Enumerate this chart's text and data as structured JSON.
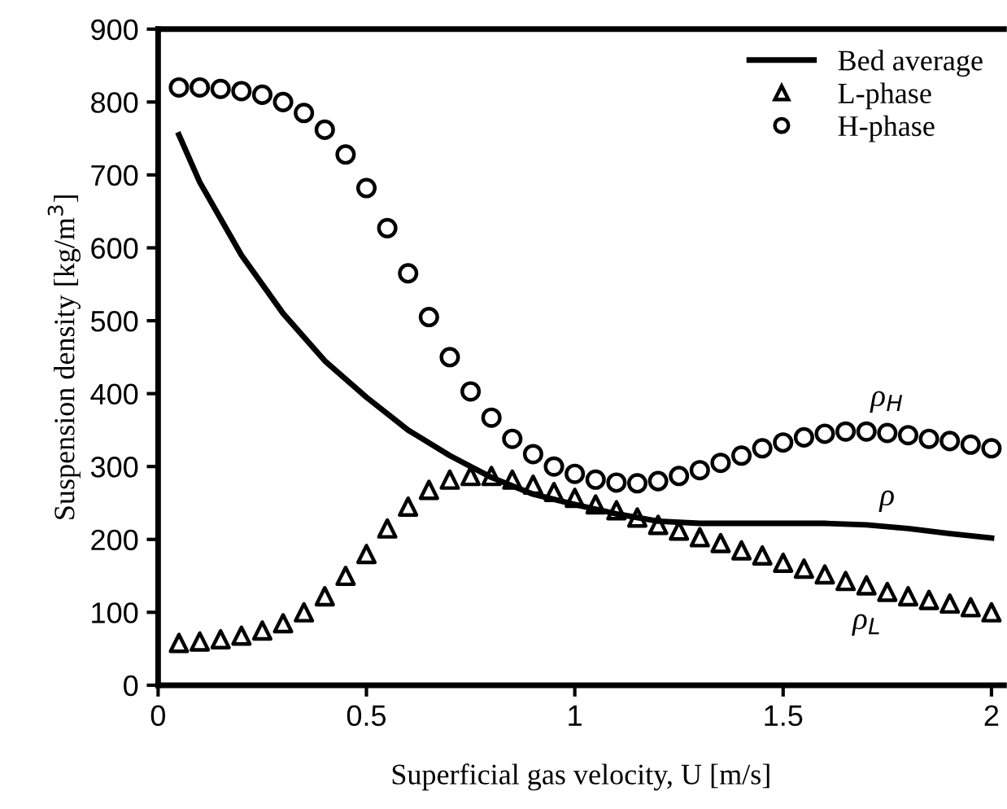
{
  "chart_data": {
    "type": "scatter",
    "xlabel": "Superficial gas velocity, U [m/s]",
    "ylabel": "Suspension density [kg/m$^{3}$]",
    "xlim": [
      0,
      2.03
    ],
    "xticks": [
      0,
      0.5,
      1,
      1.5,
      2
    ],
    "ylim": [
      0,
      900
    ],
    "yticks": [
      0,
      100,
      200,
      300,
      400,
      500,
      600,
      700,
      800,
      900
    ],
    "grid": false,
    "legend": "top right",
    "series": [
      {
        "name": "Bed average",
        "type": "line",
        "color": "#000000",
        "marker": "none",
        "line_style": "solid",
        "x": [
          0.05,
          0.1,
          0.2,
          0.3,
          0.4,
          0.5,
          0.6,
          0.7,
          0.8,
          0.9,
          1.0,
          1.1,
          1.2,
          1.3,
          1.4,
          1.5,
          1.6,
          1.7,
          1.8,
          1.9,
          2.0
        ],
        "values": [
          755,
          690,
          590,
          510,
          445,
          395,
          350,
          315,
          285,
          262,
          248,
          235,
          225,
          222,
          222,
          222,
          222,
          220,
          215,
          208,
          202
        ]
      },
      {
        "name": "L-phase",
        "color": "#000000",
        "marker": "triangle",
        "x": [
          0.05,
          0.1,
          0.15,
          0.2,
          0.25,
          0.3,
          0.35,
          0.4,
          0.45,
          0.5,
          0.55,
          0.6,
          0.65,
          0.7,
          0.75,
          0.8,
          0.85,
          0.9,
          0.95,
          1.0,
          1.05,
          1.1,
          1.15,
          1.2,
          1.25,
          1.3,
          1.35,
          1.4,
          1.45,
          1.5,
          1.55,
          1.6,
          1.65,
          1.7,
          1.75,
          1.8,
          1.85,
          1.9,
          1.95,
          2.0
        ],
        "values": [
          58,
          60,
          63,
          68,
          75,
          85,
          100,
          122,
          150,
          180,
          215,
          245,
          268,
          282,
          287,
          287,
          282,
          275,
          265,
          257,
          248,
          240,
          230,
          220,
          212,
          203,
          195,
          185,
          178,
          168,
          160,
          152,
          143,
          137,
          128,
          122,
          117,
          112,
          107,
          100
        ]
      },
      {
        "name": "H-phase",
        "color": "#000000",
        "marker": "circle",
        "x": [
          0.05,
          0.1,
          0.15,
          0.2,
          0.25,
          0.3,
          0.35,
          0.4,
          0.45,
          0.5,
          0.55,
          0.6,
          0.65,
          0.7,
          0.75,
          0.8,
          0.85,
          0.9,
          0.95,
          1.0,
          1.05,
          1.1,
          1.15,
          1.2,
          1.25,
          1.3,
          1.35,
          1.4,
          1.45,
          1.5,
          1.55,
          1.6,
          1.65,
          1.7,
          1.75,
          1.8,
          1.85,
          1.9,
          1.95,
          2.0
        ],
        "values": [
          820,
          820,
          818,
          815,
          810,
          800,
          785,
          762,
          728,
          682,
          627,
          565,
          505,
          450,
          403,
          367,
          338,
          317,
          300,
          290,
          282,
          278,
          277,
          280,
          287,
          295,
          305,
          315,
          325,
          333,
          340,
          345,
          348,
          348,
          346,
          343,
          338,
          335,
          330,
          325
        ]
      }
    ],
    "annotations": [
      "ρ$_{H}$",
      "ρ",
      "ρ$_{L}$"
    ]
  }
}
